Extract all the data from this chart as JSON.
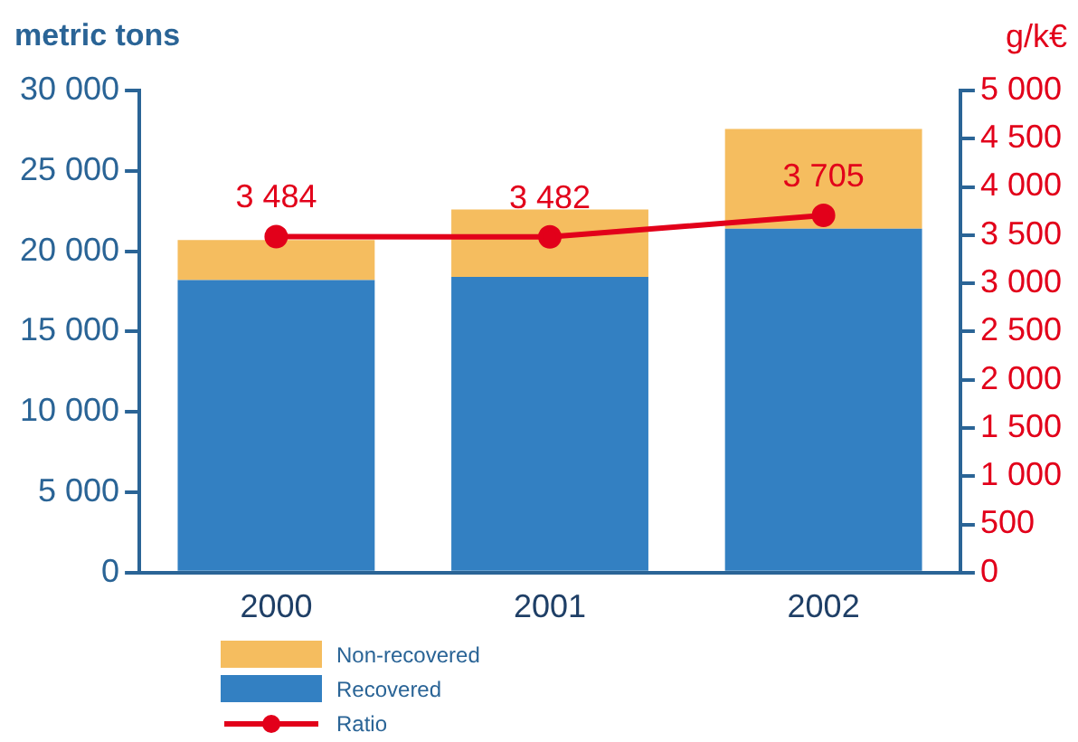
{
  "chart_data": {
    "type": "bar",
    "ylabel": "metric tons",
    "y2label": "g/k€",
    "categories": [
      "2000",
      "2001",
      "2002"
    ],
    "stacked": true,
    "grid": false,
    "legend": "bottom left",
    "ylim": [
      0,
      30000
    ],
    "yticks": [
      0,
      {
        "value": 5000,
        "label": "5 000"
      },
      {
        "value": 10000,
        "label": "10 000"
      },
      {
        "value": 15000,
        "label": "15 000"
      },
      {
        "value": 20000,
        "label": "20 000"
      },
      {
        "value": 25000,
        "label": "25 000"
      },
      {
        "value": 30000,
        "label": "30 000"
      }
    ],
    "y2lim": [
      0,
      5000
    ],
    "y2ticks": [
      0,
      500,
      {
        "value": 1000,
        "label": "1 000"
      },
      {
        "value": 1500,
        "label": "1 500"
      },
      {
        "value": 2000,
        "label": "2 000"
      },
      {
        "value": 2500,
        "label": "2 500"
      },
      {
        "value": 3000,
        "label": "3 000"
      },
      {
        "value": 3500,
        "label": "3 500"
      },
      {
        "value": 4000,
        "label": "4 000"
      },
      {
        "value": 4500,
        "label": "4 500"
      },
      {
        "value": 5000,
        "label": "5 000"
      }
    ],
    "series": [
      {
        "name": "Recovered",
        "color": "#3380c2",
        "values": [
          18200,
          18400,
          21400
        ]
      },
      {
        "name": "Non-recovered",
        "color": "#f5bd5f",
        "values": [
          2500,
          4200,
          6200
        ]
      },
      {
        "name": "Ratio",
        "type": "line",
        "axis": "y2",
        "color": "#e2001a",
        "marker": "circle",
        "values": [
          3484,
          3482,
          3705
        ],
        "value_labels": [
          "3 484",
          "3 482",
          "3 705"
        ]
      }
    ]
  }
}
